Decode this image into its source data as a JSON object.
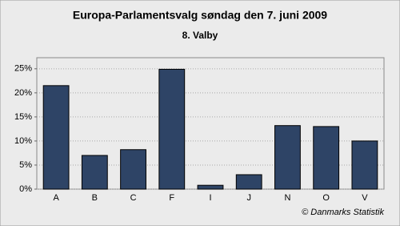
{
  "chart_data": {
    "type": "bar",
    "title": "Europa-Parlamentsvalg søndag  den 7. juni 2009",
    "subtitle": "8. Valby",
    "footer": "© Danmarks Statistik",
    "categories": [
      "A",
      "B",
      "C",
      "F",
      "I",
      "J",
      "N",
      "O",
      "V"
    ],
    "values": [
      21.5,
      7.0,
      8.2,
      24.9,
      0.8,
      3.0,
      13.2,
      13.0,
      10.0
    ],
    "color": "#2e4466",
    "ylim": [
      0,
      27.3
    ],
    "yticks": [
      {
        "value": 0,
        "label": "0%"
      },
      {
        "value": 5,
        "label": "5%"
      },
      {
        "value": 10,
        "label": "10%"
      },
      {
        "value": 15,
        "label": "15%"
      },
      {
        "value": 20,
        "label": "20%"
      },
      {
        "value": 25,
        "label": "25%"
      }
    ],
    "grid": true
  }
}
